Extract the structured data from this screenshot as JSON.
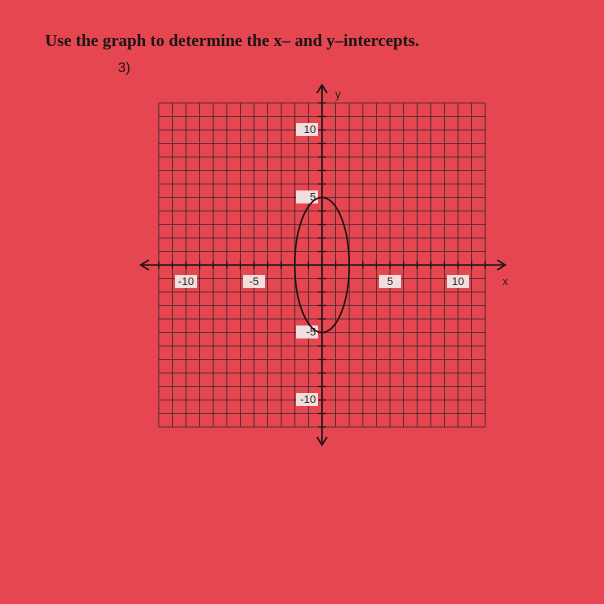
{
  "header": {
    "instruction": "Use the graph to determine the x– and y–intercepts.",
    "problem_number": "3)"
  },
  "graph": {
    "x_label": "x",
    "y_label": "y",
    "xlim": [
      -12,
      12
    ],
    "ylim": [
      -12,
      12
    ],
    "x_ticks": [
      -10,
      -5,
      5,
      10
    ],
    "y_ticks": [
      10,
      5,
      -5,
      -10
    ],
    "ellipse": {
      "rx": 2,
      "ry": 5
    }
  }
}
